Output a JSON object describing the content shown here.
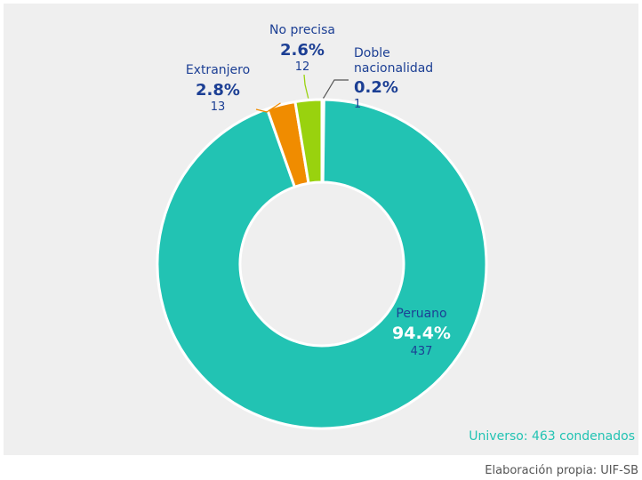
{
  "chart_data": {
    "type": "pie",
    "donut": true,
    "universe_note": "Universo: 463 condenados",
    "source": "Elaboración propia: UIF-SB",
    "slices": [
      {
        "name": "Peruano",
        "percent_label": "94.4%",
        "count": 437,
        "value": 94.4,
        "color": "#22c3b3"
      },
      {
        "name": "Extranjero",
        "percent_label": "2.8%",
        "count": 13,
        "value": 2.8,
        "color": "#f08c00"
      },
      {
        "name": "No precisa",
        "percent_label": "2.6%",
        "count": 12,
        "value": 2.6,
        "color": "#99d20e"
      },
      {
        "name": "Doble nacionalidad",
        "name_lines": [
          "Doble",
          "nacionalidad"
        ],
        "percent_label": "0.2%",
        "count": 1,
        "value": 0.2,
        "color": "#555555"
      }
    ],
    "colors": {
      "label_text": "#1c3f94",
      "peruano_label_text": "#ffffff",
      "note_text": "#22c3b3",
      "panel_background": "#efefef"
    }
  }
}
